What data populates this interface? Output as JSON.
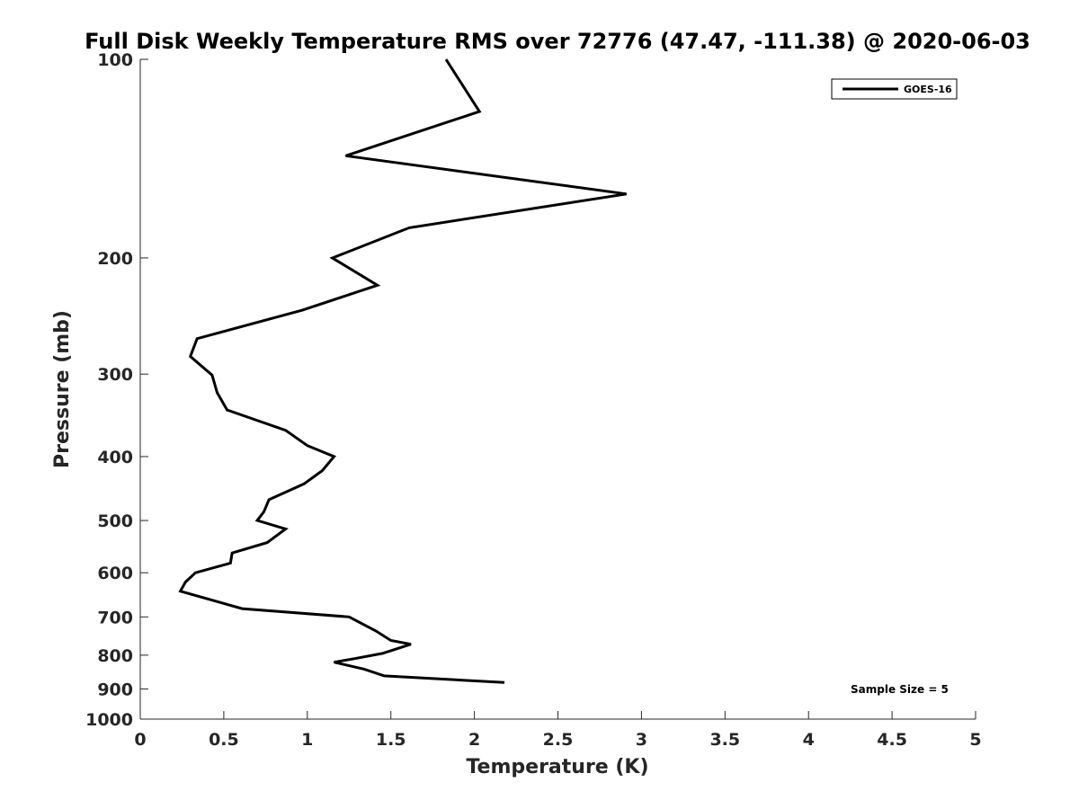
{
  "chart_data": {
    "type": "line",
    "title": "Full Disk Weekly Temperature RMS over 72776 (47.47, -111.38) @ 2020-06-03",
    "xlabel": "Temperature (K)",
    "ylabel": "Pressure (mb)",
    "xlim": [
      0,
      5
    ],
    "ylim": [
      100,
      1000
    ],
    "y_scale": "log",
    "y_reversed": true,
    "x_ticks": [
      "0",
      "0.5",
      "1",
      "1.5",
      "2",
      "2.5",
      "3",
      "3.5",
      "4",
      "4.5",
      "5"
    ],
    "y_ticks": [
      {
        "value": 100,
        "label": "100"
      },
      {
        "value": 200,
        "label": "200"
      },
      {
        "value": 300,
        "label": "300"
      },
      {
        "value": 400,
        "label": "400"
      },
      {
        "value": 500,
        "label": "500"
      },
      {
        "value": 600,
        "label": "600"
      },
      {
        "value": 700,
        "label": "700"
      },
      {
        "value": 800,
        "label": "800"
      },
      {
        "value": 900,
        "label": "900"
      },
      {
        "value": 1000,
        "label": "1000"
      }
    ],
    "grid": false,
    "legend_position": "top-right",
    "series": [
      {
        "name": "GOES-16",
        "color": "#000000",
        "points": [
          {
            "t": 1.83,
            "p": 100
          },
          {
            "t": 2.03,
            "p": 120
          },
          {
            "t": 1.23,
            "p": 140
          },
          {
            "t": 2.91,
            "p": 160
          },
          {
            "t": 1.61,
            "p": 180
          },
          {
            "t": 1.15,
            "p": 200
          },
          {
            "t": 1.42,
            "p": 220
          },
          {
            "t": 0.97,
            "p": 240
          },
          {
            "t": 0.34,
            "p": 265
          },
          {
            "t": 0.3,
            "p": 282
          },
          {
            "t": 0.43,
            "p": 301
          },
          {
            "t": 0.46,
            "p": 320
          },
          {
            "t": 0.52,
            "p": 340
          },
          {
            "t": 0.87,
            "p": 365
          },
          {
            "t": 1.0,
            "p": 385
          },
          {
            "t": 1.16,
            "p": 400
          },
          {
            "t": 1.09,
            "p": 420
          },
          {
            "t": 0.98,
            "p": 440
          },
          {
            "t": 0.77,
            "p": 465
          },
          {
            "t": 0.74,
            "p": 485
          },
          {
            "t": 0.7,
            "p": 500
          },
          {
            "t": 0.87,
            "p": 515
          },
          {
            "t": 0.76,
            "p": 540
          },
          {
            "t": 0.55,
            "p": 560
          },
          {
            "t": 0.54,
            "p": 580
          },
          {
            "t": 0.33,
            "p": 600
          },
          {
            "t": 0.27,
            "p": 620
          },
          {
            "t": 0.24,
            "p": 640
          },
          {
            "t": 0.61,
            "p": 680
          },
          {
            "t": 1.25,
            "p": 700
          },
          {
            "t": 1.41,
            "p": 735
          },
          {
            "t": 1.5,
            "p": 760
          },
          {
            "t": 1.62,
            "p": 770
          },
          {
            "t": 1.45,
            "p": 795
          },
          {
            "t": 1.28,
            "p": 810
          },
          {
            "t": 1.16,
            "p": 820
          },
          {
            "t": 1.34,
            "p": 840
          },
          {
            "t": 1.46,
            "p": 860
          },
          {
            "t": 2.18,
            "p": 880
          }
        ]
      }
    ],
    "annotation": "Sample Size = 5"
  }
}
